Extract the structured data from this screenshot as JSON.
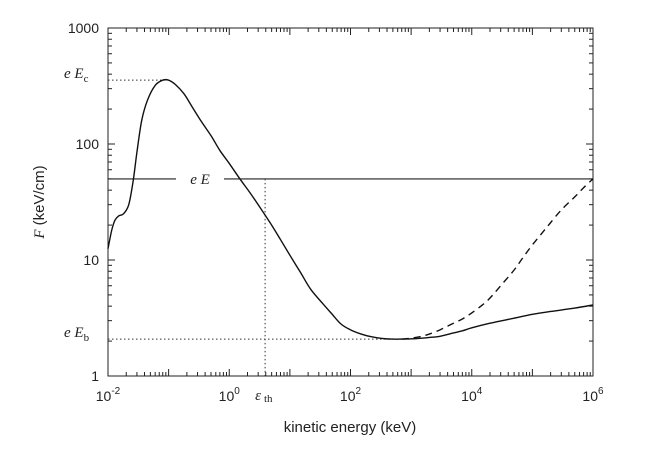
{
  "chart_data": {
    "type": "line",
    "title": "",
    "xlabel": "kinetic energy (keV)",
    "ylabel_var": "F",
    "ylabel_unit": "(keV/cm)",
    "x_scale": "log",
    "y_scale": "log",
    "xlim": [
      0.01,
      1000000
    ],
    "ylim": [
      1,
      1000
    ],
    "x_ticks": [
      {
        "value": 0.01,
        "base": "10",
        "exp": "-2"
      },
      {
        "value": 1,
        "base": "10",
        "exp": "0"
      },
      {
        "value": 100,
        "base": "10",
        "exp": "2"
      },
      {
        "value": 10000,
        "base": "10",
        "exp": "4"
      },
      {
        "value": 1000000,
        "base": "10",
        "exp": "6"
      }
    ],
    "y_ticks": [
      {
        "value": 1,
        "label": "1"
      },
      {
        "value": 10,
        "label": "10"
      },
      {
        "value": 100,
        "label": "100"
      },
      {
        "value": 1000,
        "label": "1000"
      }
    ],
    "grid": false,
    "series": [
      {
        "style": "solid",
        "x": [
          0.01,
          0.0115,
          0.013,
          0.015,
          0.018,
          0.022,
          0.026,
          0.03,
          0.036,
          0.045,
          0.06,
          0.08,
          0.1,
          0.13,
          0.18,
          0.25,
          0.35,
          0.5,
          0.7,
          1,
          1.5,
          2.2,
          3.2,
          5,
          7,
          10,
          15,
          22,
          35,
          50,
          70,
          100,
          150,
          220,
          350,
          500,
          700,
          1000,
          1500,
          2000,
          3000,
          5000,
          7000,
          10000,
          20000,
          50000,
          100000,
          200000,
          500000,
          1000000
        ],
        "y": [
          12.5,
          18,
          22,
          24,
          25,
          30,
          48,
          85,
          160,
          240,
          320,
          355,
          355,
          325,
          270,
          205,
          155,
          118,
          88,
          68,
          50,
          38,
          28.5,
          20,
          15,
          11,
          7.8,
          5.6,
          4.2,
          3.4,
          2.8,
          2.5,
          2.3,
          2.18,
          2.1,
          2.08,
          2.08,
          2.09,
          2.12,
          2.15,
          2.2,
          2.35,
          2.45,
          2.6,
          2.85,
          3.15,
          3.4,
          3.6,
          3.85,
          4.1
        ]
      },
      {
        "style": "dashed",
        "x": [
          700,
          1000,
          1500,
          2000,
          3000,
          5000,
          7000,
          10000,
          15000,
          20000,
          30000,
          50000,
          70000,
          100000,
          150000,
          200000,
          300000,
          500000,
          700000,
          1000000
        ],
        "y": [
          2.08,
          2.12,
          2.2,
          2.3,
          2.5,
          2.85,
          3.1,
          3.5,
          4.1,
          4.7,
          6,
          8.2,
          10.5,
          13.5,
          17.5,
          21,
          27,
          35,
          42,
          50
        ]
      }
    ],
    "eE_level": 50,
    "eEc_level": 355,
    "eEb_level": 2.08,
    "eps_th_x": 3.9,
    "eEc_x": 0.095,
    "eEb_x": 1000,
    "annotations": {
      "eE": {
        "e": "e",
        "E": "E"
      },
      "eEc": {
        "e": "e",
        "E": "E",
        "sub": "c"
      },
      "eEb": {
        "e": "e",
        "E": "E",
        "sub": "b"
      },
      "eps_th": {
        "sym": "ε",
        "sub": "th"
      }
    }
  }
}
